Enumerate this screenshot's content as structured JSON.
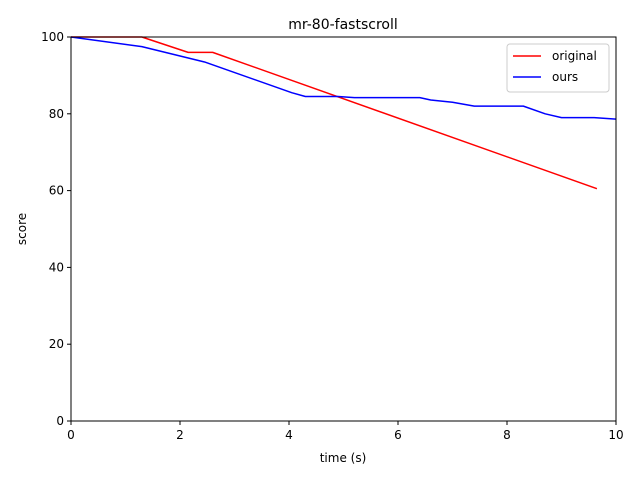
{
  "chart_data": {
    "type": "line",
    "title": "mr-80-fastscroll",
    "xlabel": "time (s)",
    "ylabel": "score",
    "xlim": [
      0,
      10
    ],
    "ylim": [
      0,
      100
    ],
    "xticks": [
      0,
      2,
      4,
      6,
      8,
      10
    ],
    "yticks": [
      0,
      20,
      40,
      60,
      80,
      100
    ],
    "grid": false,
    "legend_position": "top-right",
    "series": [
      {
        "name": "original",
        "color": "#ff0000",
        "points": [
          [
            0,
            100
          ],
          [
            1.3,
            100
          ],
          [
            2.15,
            96
          ],
          [
            2.6,
            96
          ],
          [
            9.65,
            60.5
          ]
        ]
      },
      {
        "name": "ours",
        "color": "#0000ff",
        "points": [
          [
            0,
            100
          ],
          [
            1.3,
            97.5
          ],
          [
            2.45,
            93.5
          ],
          [
            4.05,
            85.5
          ],
          [
            4.3,
            84.5
          ],
          [
            4.9,
            84.5
          ],
          [
            5.2,
            84.2
          ],
          [
            6.4,
            84.2
          ],
          [
            6.6,
            83.6
          ],
          [
            7.0,
            83
          ],
          [
            7.4,
            82
          ],
          [
            8.3,
            82
          ],
          [
            8.7,
            80
          ],
          [
            9.0,
            79
          ],
          [
            9.6,
            79
          ],
          [
            10,
            78.6
          ]
        ]
      }
    ]
  }
}
